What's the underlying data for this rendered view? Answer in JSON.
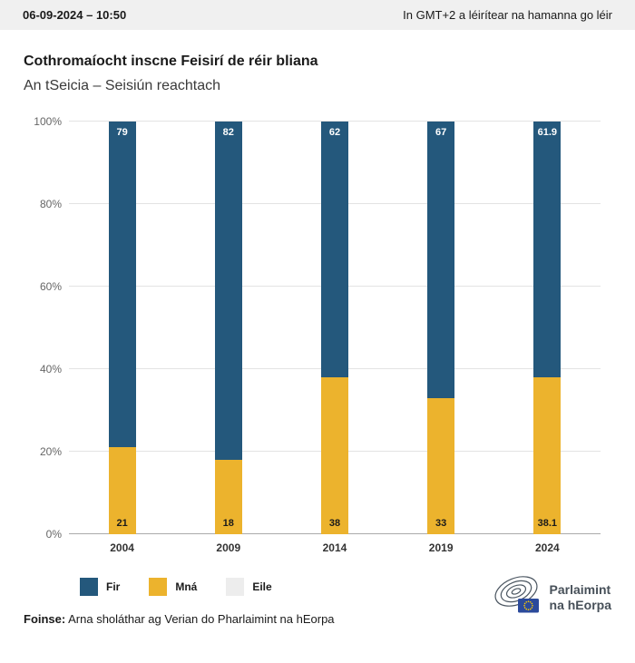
{
  "header": {
    "datetime": "06-09-2024 – 10:50",
    "timezone_note": "In GMT+2 a léirítear na hamanna go léir"
  },
  "title": "Cothromaíocht inscne Feisirí de réir bliana",
  "subtitle": "An tSeicia – Seisiún reachtach",
  "chart_data": {
    "type": "bar",
    "stacked": true,
    "title": "Cothromaíocht inscne Feisirí de réir bliana",
    "subtitle": "An tSeicia – Seisiún reachtach",
    "categories": [
      "2004",
      "2009",
      "2014",
      "2019",
      "2024"
    ],
    "series": [
      {
        "name": "Fir",
        "color": "#24587c",
        "values": [
          79,
          82,
          62,
          67,
          61.9
        ],
        "labels": [
          "79",
          "82",
          "62",
          "67",
          "61.9"
        ],
        "label_color": "#ffffff",
        "label_pos": "top"
      },
      {
        "name": "Mná",
        "color": "#ecb32d",
        "values": [
          21,
          18,
          38,
          33,
          38.1
        ],
        "labels": [
          "21",
          "18",
          "38",
          "33",
          "38.1"
        ],
        "label_color": "#1a1a1a",
        "label_pos": "bottom"
      },
      {
        "name": "Eile",
        "color": "#ededed",
        "values": [
          0,
          0,
          0,
          0,
          0
        ],
        "labels": [
          "",
          "",
          "",
          "",
          ""
        ],
        "label_color": "#1a1a1a",
        "label_pos": "bottom"
      }
    ],
    "ylim": [
      0,
      100
    ],
    "yticks": [
      "0%",
      "20%",
      "40%",
      "60%",
      "80%",
      "100%"
    ],
    "grid": true,
    "legend_position": "bottom-left"
  },
  "legend": [
    {
      "label": "Fir",
      "color": "#24587c"
    },
    {
      "label": "Mná",
      "color": "#ecb32d"
    },
    {
      "label": "Eile",
      "color": "#ededed"
    }
  ],
  "footer": {
    "source_label": "Foinse:",
    "source_text": " Arna sholáthar ag Verian do Pharlaimint na hEorpa"
  },
  "logo": {
    "line1": "Parlaimint",
    "line2": "na hEorpa"
  }
}
